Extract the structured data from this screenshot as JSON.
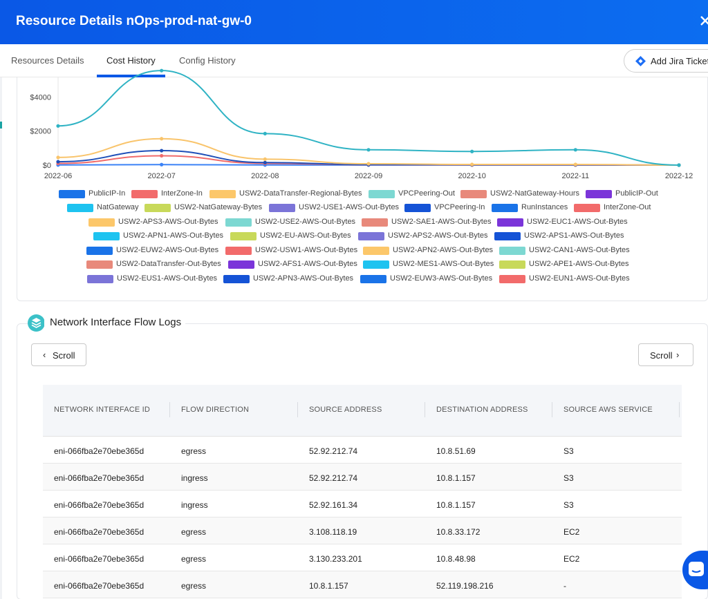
{
  "header": {
    "title": "Resource Details nOps-prod-nat-gw-0",
    "close_icon": "close-icon"
  },
  "tabs": [
    {
      "label": "Resources Details",
      "active": false
    },
    {
      "label": "Cost History",
      "active": true
    },
    {
      "label": "Config History",
      "active": false
    }
  ],
  "jira_button": {
    "label": "Add Jira Ticket",
    "icon": "jira-diamond-icon"
  },
  "chart_data": {
    "type": "line",
    "x": [
      "2022-06",
      "2022-07",
      "2022-08",
      "2022-09",
      "2022-10",
      "2022-11",
      "2022-12"
    ],
    "y_ticks": [
      "$4000",
      "$2000",
      "$0"
    ],
    "ylim": [
      0,
      5800
    ],
    "series": [
      {
        "name": "NatGateway",
        "color": "#2fb3c4",
        "values": [
          2300,
          5550,
          1850,
          900,
          800,
          900,
          0
        ]
      },
      {
        "name": "USW2-APS3-AWS-Out-Bytes",
        "color": "#f9c46b",
        "values": [
          450,
          1550,
          350,
          80,
          40,
          40,
          0
        ]
      },
      {
        "name": "USW2-USE1-AWS-Out-Bytes",
        "color": "#1f4fb8",
        "values": [
          200,
          850,
          150,
          30,
          20,
          20,
          0
        ]
      },
      {
        "name": "InterZone-Out",
        "color": "#f06b6b",
        "values": [
          100,
          550,
          100,
          20,
          10,
          10,
          0
        ]
      },
      {
        "name": "PublicIP-In",
        "color": "#3b82f6",
        "values": [
          10,
          30,
          10,
          5,
          5,
          5,
          0
        ]
      }
    ],
    "legend": [
      {
        "name": "PublicIP-In",
        "color": "#1a73e8"
      },
      {
        "name": "InterZone-In",
        "color": "#f26b6b"
      },
      {
        "name": "USW2-DataTransfer-Regional-Bytes",
        "color": "#fcc76a"
      },
      {
        "name": "VPCPeering-Out",
        "color": "#7dd8d2"
      },
      {
        "name": "USW2-NatGateway-Hours",
        "color": "#e8897b"
      },
      {
        "name": "PublicIP-Out",
        "color": "#7b35d9"
      },
      {
        "name": "NatGateway",
        "color": "#1ec3f0"
      },
      {
        "name": "USW2-NatGateway-Bytes",
        "color": "#c8d95a"
      },
      {
        "name": "USW2-USE1-AWS-Out-Bytes",
        "color": "#7b74d8"
      },
      {
        "name": "VPCPeering-In",
        "color": "#1553d6"
      },
      {
        "name": "RunInstances",
        "color": "#1a73e8"
      },
      {
        "name": "InterZone-Out",
        "color": "#f26b6b"
      },
      {
        "name": "USW2-APS3-AWS-Out-Bytes",
        "color": "#fcc76a"
      },
      {
        "name": "USW2-USE2-AWS-Out-Bytes",
        "color": "#7dd8d2"
      },
      {
        "name": "USW2-SAE1-AWS-Out-Bytes",
        "color": "#e8897b"
      },
      {
        "name": "USW2-EUC1-AWS-Out-Bytes",
        "color": "#7b35d9"
      },
      {
        "name": "USW2-APN1-AWS-Out-Bytes",
        "color": "#1ec3f0"
      },
      {
        "name": "USW2-EU-AWS-Out-Bytes",
        "color": "#c8d95a"
      },
      {
        "name": "USW2-APS2-AWS-Out-Bytes",
        "color": "#7b74d8"
      },
      {
        "name": "USW2-APS1-AWS-Out-Bytes",
        "color": "#1553d6"
      },
      {
        "name": "USW2-EUW2-AWS-Out-Bytes",
        "color": "#1a73e8"
      },
      {
        "name": "USW2-USW1-AWS-Out-Bytes",
        "color": "#f26b6b"
      },
      {
        "name": "USW2-APN2-AWS-Out-Bytes",
        "color": "#fcc76a"
      },
      {
        "name": "USW2-CAN1-AWS-Out-Bytes",
        "color": "#7dd8d2"
      },
      {
        "name": "USW2-DataTransfer-Out-Bytes",
        "color": "#e8897b"
      },
      {
        "name": "USW2-AFS1-AWS-Out-Bytes",
        "color": "#7b35d9"
      },
      {
        "name": "USW2-MES1-AWS-Out-Bytes",
        "color": "#1ec3f0"
      },
      {
        "name": "USW2-APE1-AWS-Out-Bytes",
        "color": "#c8d95a"
      },
      {
        "name": "USW2-EUS1-AWS-Out-Bytes",
        "color": "#7b74d8"
      },
      {
        "name": "USW2-APN3-AWS-Out-Bytes",
        "color": "#1553d6"
      },
      {
        "name": "USW2-EUW3-AWS-Out-Bytes",
        "color": "#1a73e8"
      },
      {
        "name": "USW2-EUN1-AWS-Out-Bytes",
        "color": "#f26b6b"
      }
    ]
  },
  "flow_logs": {
    "title": "Network Interface Flow Logs",
    "icon": "layers-icon",
    "scroll_left_label": "Scroll",
    "scroll_right_label": "Scroll",
    "columns": [
      "NETWORK INTERFACE ID",
      "FLOW DIRECTION",
      "SOURCE ADDRESS",
      "DESTINATION ADDRESS",
      "SOURCE AWS SERVICE"
    ],
    "rows": [
      [
        "eni-066fba2e70ebe365d",
        "egress",
        "52.92.212.74",
        "10.8.51.69",
        "S3"
      ],
      [
        "eni-066fba2e70ebe365d",
        "ingress",
        "52.92.212.74",
        "10.8.1.157",
        "S3"
      ],
      [
        "eni-066fba2e70ebe365d",
        "ingress",
        "52.92.161.34",
        "10.8.1.157",
        "S3"
      ],
      [
        "eni-066fba2e70ebe365d",
        "egress",
        "3.108.118.19",
        "10.8.33.172",
        "EC2"
      ],
      [
        "eni-066fba2e70ebe365d",
        "egress",
        "3.130.233.201",
        "10.8.48.98",
        "EC2"
      ],
      [
        "eni-066fba2e70ebe365d",
        "egress",
        "10.8.1.157",
        "52.119.198.216",
        "-"
      ]
    ]
  },
  "chat": {
    "icon": "chat-icon"
  }
}
